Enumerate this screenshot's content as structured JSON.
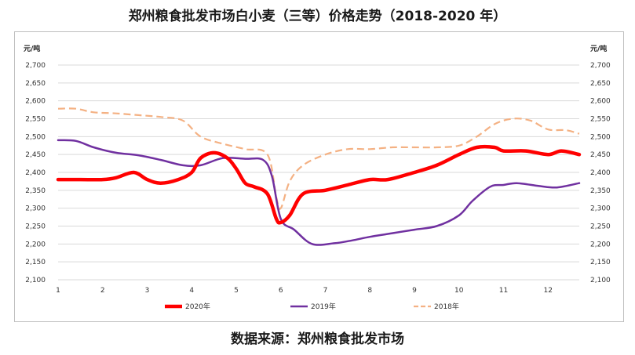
{
  "title": "郑州粮食批发市场白小麦（三等）价格走势（2018-2020 年）",
  "source": "数据来源：郑州粮食批发市场",
  "chart_data": {
    "type": "line",
    "ylabel_left": "元/吨",
    "ylabel_right": "元/吨",
    "ylim": [
      2100,
      2700
    ],
    "yticks": [
      2100,
      2150,
      2200,
      2250,
      2300,
      2350,
      2400,
      2450,
      2500,
      2550,
      2600,
      2650,
      2700
    ],
    "ytick_labels": [
      "2,100",
      "2,150",
      "2,200",
      "2,250",
      "2,300",
      "2,350",
      "2,400",
      "2,450",
      "2,500",
      "2,550",
      "2,600",
      "2,650",
      "2,700"
    ],
    "xlim": [
      1,
      12.7
    ],
    "xticks": [
      1,
      2,
      3,
      4,
      5,
      6,
      7,
      8,
      9,
      10,
      11,
      12
    ],
    "xtick_labels": [
      "1",
      "2",
      "3",
      "4",
      "5",
      "6",
      "7",
      "8",
      "9",
      "10",
      "11",
      "12"
    ],
    "legend_position": "bottom",
    "series": [
      {
        "name": "2020年",
        "color": "#ff0000",
        "style": "solid-thick",
        "x": [
          1,
          1.5,
          2,
          2.3,
          2.7,
          3,
          3.3,
          3.7,
          4,
          4.2,
          4.5,
          4.8,
          5,
          5.2,
          5.4,
          5.7,
          5.9,
          6,
          6.2,
          6.5,
          7,
          7.5,
          8,
          8.4,
          9,
          9.5,
          10,
          10.4,
          10.8,
          11,
          11.5,
          12,
          12.3,
          12.7
        ],
        "values": [
          2380,
          2380,
          2380,
          2385,
          2400,
          2380,
          2370,
          2380,
          2400,
          2440,
          2455,
          2440,
          2410,
          2370,
          2360,
          2340,
          2270,
          2260,
          2280,
          2340,
          2350,
          2365,
          2380,
          2380,
          2400,
          2420,
          2450,
          2470,
          2470,
          2460,
          2460,
          2450,
          2460,
          2450
        ]
      },
      {
        "name": "2019年",
        "color": "#7030a0",
        "style": "solid-mid",
        "x": [
          1,
          1.4,
          1.8,
          2.3,
          2.8,
          3.3,
          3.8,
          4.2,
          4.7,
          5.2,
          5.6,
          5.8,
          6,
          6.3,
          6.7,
          7.2,
          7.6,
          8,
          8.5,
          9,
          9.5,
          10,
          10.3,
          10.7,
          11,
          11.3,
          11.8,
          12.2,
          12.7
        ],
        "values": [
          2490,
          2488,
          2470,
          2455,
          2448,
          2435,
          2420,
          2420,
          2440,
          2438,
          2435,
          2390,
          2270,
          2240,
          2200,
          2202,
          2210,
          2220,
          2230,
          2240,
          2250,
          2280,
          2320,
          2360,
          2365,
          2370,
          2362,
          2358,
          2370
        ]
      },
      {
        "name": "2018年",
        "color": "#f4b183",
        "style": "dashed",
        "x": [
          1,
          1.4,
          1.8,
          2.3,
          2.8,
          3.3,
          3.8,
          4.2,
          4.7,
          5.2,
          5.7,
          5.9,
          6,
          6.2,
          6.5,
          7,
          7.5,
          8,
          8.5,
          9,
          9.5,
          10,
          10.4,
          10.8,
          11.2,
          11.6,
          12,
          12.4,
          12.7
        ],
        "values": [
          2578,
          2578,
          2568,
          2565,
          2560,
          2555,
          2545,
          2500,
          2480,
          2465,
          2450,
          2330,
          2300,
          2375,
          2420,
          2450,
          2465,
          2465,
          2470,
          2470,
          2470,
          2475,
          2500,
          2535,
          2550,
          2545,
          2520,
          2518,
          2508
        ]
      }
    ]
  }
}
